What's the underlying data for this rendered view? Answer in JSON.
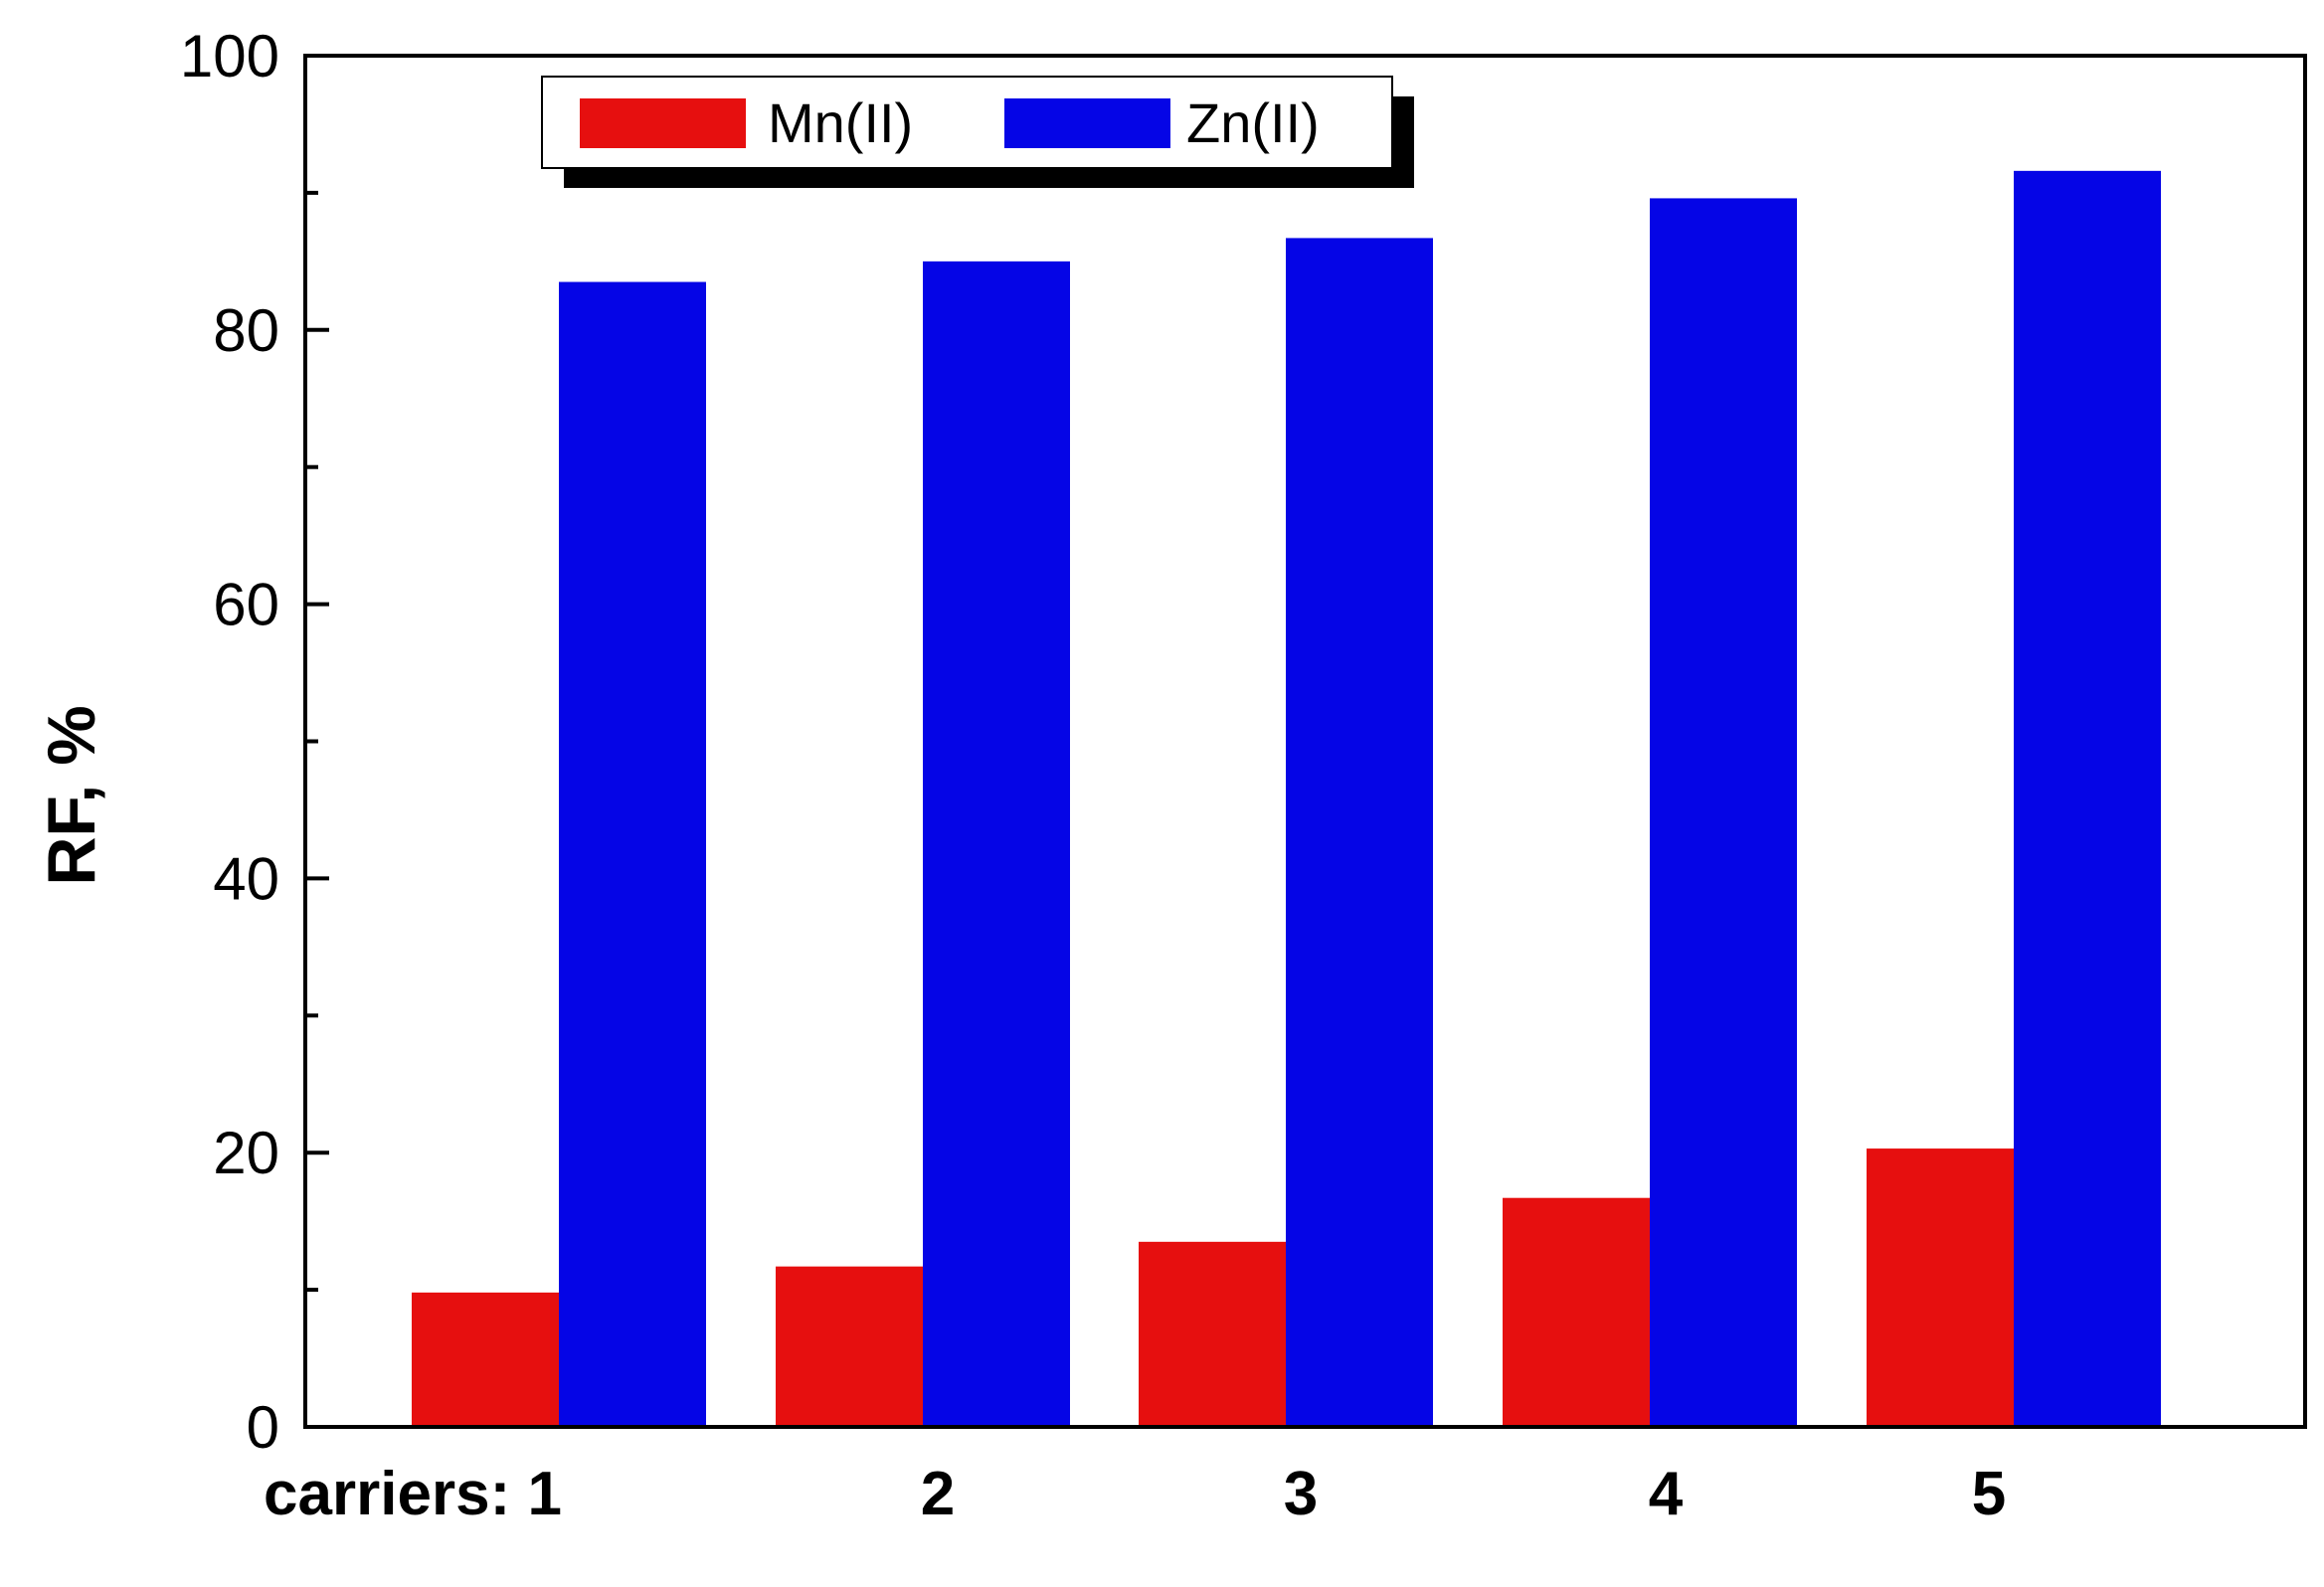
{
  "chart_data": {
    "type": "bar",
    "ylabel": "RF, %",
    "xlabel": "",
    "ylim": [
      0,
      100
    ],
    "yticks": [
      0,
      20,
      40,
      60,
      80,
      100
    ],
    "categories": [
      "carriers: 1",
      "2",
      "3",
      "4",
      "5"
    ],
    "series": [
      {
        "name": "Mn(II)",
        "color": "#e60f0f",
        "values": [
          9.8,
          11.7,
          13.5,
          16.7,
          20.3
        ]
      },
      {
        "name": "Zn(II)",
        "color": "#0505e6",
        "values": [
          83.5,
          85.0,
          86.7,
          89.6,
          91.6
        ]
      }
    ],
    "legend": {
      "position": "top-left"
    },
    "grid": false
  }
}
